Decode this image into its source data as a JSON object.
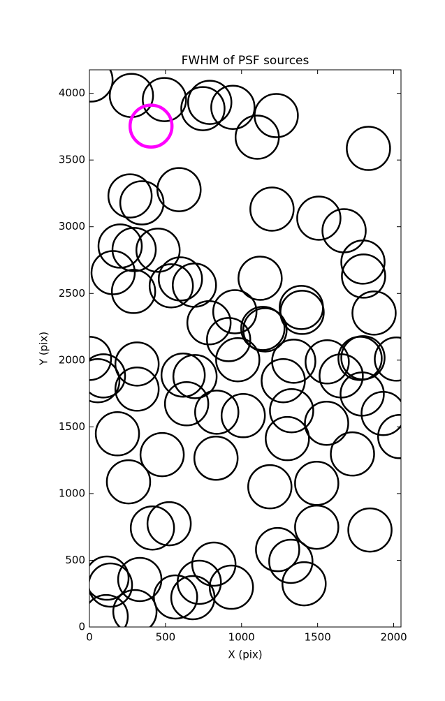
{
  "chart_data": {
    "type": "scatter",
    "title": "FWHM of PSF sources",
    "x_label": "X (pix)",
    "y_label": "Y (pix)",
    "x": [
      10,
      276,
      493,
      746,
      791,
      943,
      1228,
      1103,
      1834,
      267,
      345,
      589,
      1200,
      1508,
      1674,
      202,
      294,
      451,
      1798,
      1802,
      156,
      290,
      538,
      598,
      690,
      1122,
      956,
      1393,
      1398,
      1871,
      786,
      915,
      1140,
      1154,
      0,
      92,
      55,
      313,
      313,
      616,
      694,
      975,
      1343,
      1274,
      1563,
      1655,
      1779,
      1798,
      2018,
      1793,
      1931,
      2040,
      639,
      837,
      1011,
      1329,
      1301,
      1559,
      184,
      478,
      832,
      1729,
      257,
      1186,
      1494,
      414,
      524,
      1494,
      1844,
      1237,
      1324,
      1411,
      818,
      933,
      115,
      138,
      331,
      722,
      680,
      566,
      299,
      110
    ],
    "y": [
      4100,
      3984,
      3953,
      3885,
      3932,
      3895,
      3833,
      3671,
      3587,
      3231,
      3179,
      3278,
      3132,
      3064,
      2970,
      2855,
      2829,
      2824,
      2735,
      2630,
      2656,
      2515,
      2557,
      2609,
      2562,
      2614,
      2363,
      2395,
      2358,
      2353,
      2280,
      2154,
      2238,
      2227,
      2013,
      1882,
      1846,
      1971,
      1783,
      1888,
      1877,
      2003,
      1992,
      1846,
      1987,
      1882,
      2013,
      2018,
      2008,
      1746,
      1600,
      1427,
      1673,
      1610,
      1584,
      1621,
      1412,
      1527,
      1448,
      1292,
      1265,
      1297,
      1088,
      1051,
      1077,
      742,
      774,
      748,
      727,
      580,
      492,
      324,
      471,
      298,
      366,
      314,
      356,
      335,
      220,
      225,
      115,
      78
    ],
    "color": "#000000",
    "highlight": {
      "x": 405,
      "y": 3754,
      "color": "#ff00ff"
    },
    "xlim": [
      0,
      2048
    ],
    "ylim": [
      0,
      4176
    ],
    "xticks": [
      0,
      500,
      1000,
      1500,
      2000
    ],
    "yticks": [
      0,
      500,
      1000,
      1500,
      2000,
      2500,
      3000,
      3500,
      4000
    ]
  }
}
